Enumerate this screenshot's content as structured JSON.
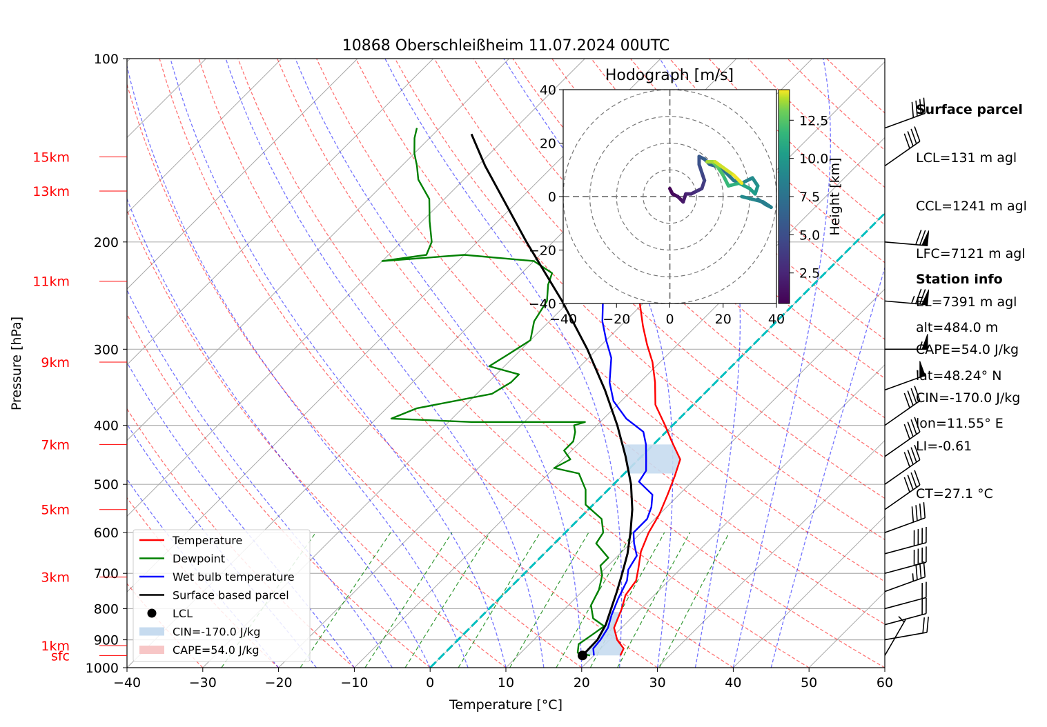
{
  "chart_data": {
    "type": "skew-t",
    "title": "10868 Oberschleißheim 11.07.2024 00UTC",
    "xlabel": "Temperature [°C]",
    "ylabel": "Pressure [hPa]",
    "xlim": [
      -40,
      60
    ],
    "ylim": [
      1000,
      100
    ],
    "x_ticks": [
      "−40",
      "−30",
      "−20",
      "−10",
      "0",
      "10",
      "20",
      "30",
      "40",
      "50",
      "60"
    ],
    "x_tick_values": [
      -40,
      -30,
      -20,
      -10,
      0,
      10,
      20,
      30,
      40,
      50,
      60
    ],
    "y_ticks": [
      {
        "p": 100,
        "label": "100"
      },
      {
        "p": 200,
        "label": "200"
      },
      {
        "p": 300,
        "label": "300"
      },
      {
        "p": 400,
        "label": "400"
      },
      {
        "p": 500,
        "label": "500"
      },
      {
        "p": 600,
        "label": "600"
      },
      {
        "p": 700,
        "label": "700"
      },
      {
        "p": 800,
        "label": "800"
      },
      {
        "p": 900,
        "label": "900"
      },
      {
        "p": 1000,
        "label": "1000"
      }
    ],
    "height_labels": [
      {
        "p": 145,
        "label": "15km"
      },
      {
        "p": 165,
        "label": "13km"
      },
      {
        "p": 232,
        "label": "11km"
      },
      {
        "p": 315,
        "label": "9km"
      },
      {
        "p": 430,
        "label": "7km"
      },
      {
        "p": 550,
        "label": "5km"
      },
      {
        "p": 710,
        "label": "3km"
      },
      {
        "p": 920,
        "label": "1km"
      },
      {
        "p": 955,
        "label": "sfc"
      }
    ],
    "series": [
      {
        "name": "Temperature",
        "color": "#ff0000",
        "points": [
          [
            23.5,
            955
          ],
          [
            23,
            930
          ],
          [
            21,
            900
          ],
          [
            19,
            860
          ],
          [
            17.5,
            800
          ],
          [
            16.2,
            760
          ],
          [
            15.7,
            720
          ],
          [
            14.5,
            690
          ],
          [
            12.5,
            645
          ],
          [
            11,
            600
          ],
          [
            10,
            560
          ],
          [
            8.5,
            520
          ],
          [
            7,
            485
          ],
          [
            5.5,
            455
          ],
          [
            2,
            425
          ],
          [
            -1,
            400
          ],
          [
            -5,
            370
          ],
          [
            -8,
            340
          ],
          [
            -11,
            315
          ],
          [
            -14,
            295
          ],
          [
            -17,
            275
          ],
          [
            -20,
            255
          ],
          [
            -24,
            230
          ],
          [
            -28,
            210
          ],
          [
            -31,
            195
          ],
          [
            -33,
            180
          ],
          [
            -37,
            165
          ],
          [
            -41,
            150
          ],
          [
            -45,
            140
          ],
          [
            -47,
            133
          ],
          [
            -50,
            128
          ],
          [
            -53,
            122
          ]
        ]
      },
      {
        "name": "Dewpoint",
        "color": "#008000",
        "points": [
          [
            19.5,
            955
          ],
          [
            17.5,
            945
          ],
          [
            16.5,
            915
          ],
          [
            17,
            885
          ],
          [
            17.5,
            855
          ],
          [
            15,
            830
          ],
          [
            13,
            790
          ],
          [
            12,
            745
          ],
          [
            10.5,
            705
          ],
          [
            9,
            680
          ],
          [
            9,
            660
          ],
          [
            5.5,
            625
          ],
          [
            5,
            600
          ],
          [
            3,
            570
          ],
          [
            -1,
            540
          ],
          [
            -3,
            510
          ],
          [
            -6,
            480
          ],
          [
            -10,
            470
          ],
          [
            -9,
            455
          ],
          [
            -11,
            440
          ],
          [
            -11,
            425
          ],
          [
            -12,
            410
          ],
          [
            -13,
            400
          ],
          [
            -12,
            395
          ],
          [
            -27,
            395
          ],
          [
            -38,
            390
          ],
          [
            -36,
            375
          ],
          [
            -28,
            355
          ],
          [
            -27,
            340
          ],
          [
            -27,
            330
          ],
          [
            -32,
            320
          ],
          [
            -31,
            305
          ],
          [
            -30,
            290
          ],
          [
            -32,
            270
          ],
          [
            -33,
            250
          ],
          [
            -35,
            235
          ],
          [
            -36,
            225
          ],
          [
            -40,
            215
          ],
          [
            -50,
            210
          ],
          [
            -60,
            215
          ],
          [
            -55,
            210
          ],
          [
            -56,
            200
          ],
          [
            -59,
            185
          ],
          [
            -62,
            170
          ],
          [
            -66,
            158
          ],
          [
            -68,
            150
          ],
          [
            -70,
            143
          ],
          [
            -72,
            135
          ],
          [
            -73,
            130
          ]
        ]
      },
      {
        "name": "Wet bulb temperature",
        "color": "#0000ff",
        "points": [
          [
            20,
            955
          ],
          [
            19,
            930
          ],
          [
            18.8,
            900
          ],
          [
            18.2,
            860
          ],
          [
            17,
            820
          ],
          [
            15.7,
            770
          ],
          [
            14.5,
            720
          ],
          [
            13.2,
            690
          ],
          [
            12.5,
            655
          ],
          [
            10.5,
            625
          ],
          [
            9,
            600
          ],
          [
            9,
            570
          ],
          [
            8,
            545
          ],
          [
            6.5,
            520
          ],
          [
            3,
            495
          ],
          [
            2.5,
            475
          ],
          [
            1,
            455
          ],
          [
            -1,
            430
          ],
          [
            -3,
            410
          ],
          [
            -7,
            390
          ],
          [
            -11,
            365
          ],
          [
            -14,
            340
          ],
          [
            -17,
            310
          ],
          [
            -20,
            290
          ],
          [
            -23,
            270
          ],
          [
            -27,
            240
          ],
          [
            -30,
            220
          ],
          [
            -32,
            205
          ],
          [
            -35,
            190
          ],
          [
            -39,
            172
          ],
          [
            -44,
            150
          ],
          [
            -48,
            138
          ],
          [
            -51,
            130
          ],
          [
            -54,
            123
          ]
        ]
      },
      {
        "name": "Surface based parcel",
        "color": "#000000",
        "points": [
          [
            18.5,
            955
          ],
          [
            18.4,
            900
          ],
          [
            17.5,
            850
          ],
          [
            16.1,
            800
          ],
          [
            14.6,
            750
          ],
          [
            12.9,
            700
          ],
          [
            11.0,
            650
          ],
          [
            8.6,
            600
          ],
          [
            5.8,
            550
          ],
          [
            2.3,
            500
          ],
          [
            -2.1,
            450
          ],
          [
            -7.3,
            400
          ],
          [
            -13.6,
            350
          ],
          [
            -21.3,
            300
          ],
          [
            -31.0,
            250
          ],
          [
            -43.5,
            200
          ],
          [
            -59.0,
            150
          ],
          [
            -65.0,
            133
          ]
        ]
      }
    ],
    "lcl": {
      "name": "LCL",
      "p": 955,
      "t": 18.5
    },
    "cin_label": "CIN=-170.0 J/kg",
    "cape_label": "CAPE=54.0 J/kg",
    "wind_barbs": [
      {
        "p": 955,
        "speed": 3,
        "dir": 210
      },
      {
        "p": 900,
        "speed": 20,
        "dir": 260
      },
      {
        "p": 850,
        "speed": 20,
        "dir": 255
      },
      {
        "p": 800,
        "speed": 22,
        "dir": 255
      },
      {
        "p": 750,
        "speed": 35,
        "dir": 250
      },
      {
        "p": 700,
        "speed": 40,
        "dir": 255
      },
      {
        "p": 650,
        "speed": 40,
        "dir": 255
      },
      {
        "p": 600,
        "speed": 40,
        "dir": 250
      },
      {
        "p": 550,
        "speed": 40,
        "dir": 235
      },
      {
        "p": 500,
        "speed": 40,
        "dir": 235
      },
      {
        "p": 450,
        "speed": 40,
        "dir": 235
      },
      {
        "p": 400,
        "speed": 40,
        "dir": 235
      },
      {
        "p": 350,
        "speed": 55,
        "dir": 250
      },
      {
        "p": 300,
        "speed": 55,
        "dir": 270
      },
      {
        "p": 250,
        "speed": 75,
        "dir": 275
      },
      {
        "p": 200,
        "speed": 70,
        "dir": 275
      },
      {
        "p": 150,
        "speed": 40,
        "dir": 235
      },
      {
        "p": 130,
        "speed": 40,
        "dir": 250
      }
    ],
    "legend_placement": "lower-left",
    "hodograph": {
      "title": "Hodograph [m/s]",
      "xlim": [
        -40,
        40
      ],
      "ylim": [
        -40,
        40
      ],
      "ticks": [
        -40,
        -20,
        0,
        20,
        40
      ],
      "tick_labels": [
        "−40",
        "−20",
        "0",
        "20",
        "40"
      ],
      "rings": [
        10,
        20,
        30,
        40
      ],
      "colorbar_label": "Height [km]",
      "colorbar_ticks": [
        2.5,
        5.0,
        7.5,
        10.0,
        12.5
      ],
      "colorbar_tick_labels": [
        "2.5",
        "5.0",
        "7.5",
        "10.0",
        "12.5"
      ],
      "colorbar_range": [
        0.5,
        14.5
      ],
      "points": [
        {
          "u": 0,
          "v": 3,
          "h": 0.5
        },
        {
          "u": 1,
          "v": 1,
          "h": 0.8
        },
        {
          "u": 3,
          "v": 0,
          "h": 1.2
        },
        {
          "u": 5,
          "v": -2,
          "h": 1.6
        },
        {
          "u": 6,
          "v": 1,
          "h": 2.0
        },
        {
          "u": 8,
          "v": 1,
          "h": 2.5
        },
        {
          "u": 10,
          "v": 2,
          "h": 3.0
        },
        {
          "u": 12,
          "v": 3,
          "h": 3.5
        },
        {
          "u": 13,
          "v": 6,
          "h": 4.0
        },
        {
          "u": 12,
          "v": 9,
          "h": 4.5
        },
        {
          "u": 11,
          "v": 12,
          "h": 5.0
        },
        {
          "u": 11,
          "v": 15,
          "h": 5.5
        },
        {
          "u": 13,
          "v": 14,
          "h": 6.0
        },
        {
          "u": 15,
          "v": 12,
          "h": 6.5
        },
        {
          "u": 19,
          "v": 11,
          "h": 7.0
        },
        {
          "u": 21,
          "v": 9,
          "h": 7.5
        },
        {
          "u": 24,
          "v": 6,
          "h": 8.0
        },
        {
          "u": 27,
          "v": 5,
          "h": 8.5
        },
        {
          "u": 31,
          "v": 7,
          "h": 9.0
        },
        {
          "u": 33,
          "v": 4,
          "h": 9.5
        },
        {
          "u": 32,
          "v": 1,
          "h": 10.0
        },
        {
          "u": 30,
          "v": 3,
          "h": 10.5
        },
        {
          "u": 26,
          "v": 5,
          "h": 11.0
        },
        {
          "u": 22,
          "v": 4,
          "h": 11.5
        },
        {
          "u": 20,
          "v": 8,
          "h": 12.0
        },
        {
          "u": 18,
          "v": 11,
          "h": 12.5
        },
        {
          "u": 16,
          "v": 13,
          "h": 13.0
        },
        {
          "u": 14,
          "v": 13,
          "h": 13.5
        },
        {
          "u": 17,
          "v": 13,
          "h": 14.0
        },
        {
          "u": 24,
          "v": 8,
          "h": 14.3
        },
        {
          "u": 27,
          "v": 5,
          "h": 14.5
        }
      ]
    },
    "hodograph_tail": [
      {
        "u": 27,
        "v": 0,
        "h": 9.2
      },
      {
        "u": 31,
        "v": -1,
        "h": 9.0
      },
      {
        "u": 35,
        "v": -2,
        "h": 8.8
      },
      {
        "u": 38,
        "v": -4,
        "h": 8.6
      },
      {
        "u": 36,
        "v": -3,
        "h": 8.4
      },
      {
        "u": 33,
        "v": -1,
        "h": 8.2
      }
    ]
  },
  "surface_parcel": {
    "heading": "Surface parcel",
    "lines": [
      "LCL=131 m agl",
      "CCL=1241 m agl",
      "LFC=7121 m agl",
      "EL=7391 m agl",
      "CAPE=54.0 J/kg",
      "CIN=-170.0 J/kg",
      "LI=-0.61",
      "CT=27.1 °C"
    ]
  },
  "station_info": {
    "heading": "Station info",
    "lines": [
      "alt=484.0 m",
      "lat=48.24° N",
      "lon=11.55° E"
    ]
  },
  "colors": {
    "temperature": "#ff0000",
    "dewpoint": "#008000",
    "wetbulb": "#0000ff",
    "parcel": "#000000",
    "dry_adiabats": "#ff0000",
    "moist_adiabats": "#0000ff",
    "mixing_ratio": "#008000",
    "isotherm_zero": "#00bfbf",
    "height_labels": "#ff0000",
    "cin_fill": "#c6dbef",
    "cape_fill": "#f7c6c6"
  }
}
